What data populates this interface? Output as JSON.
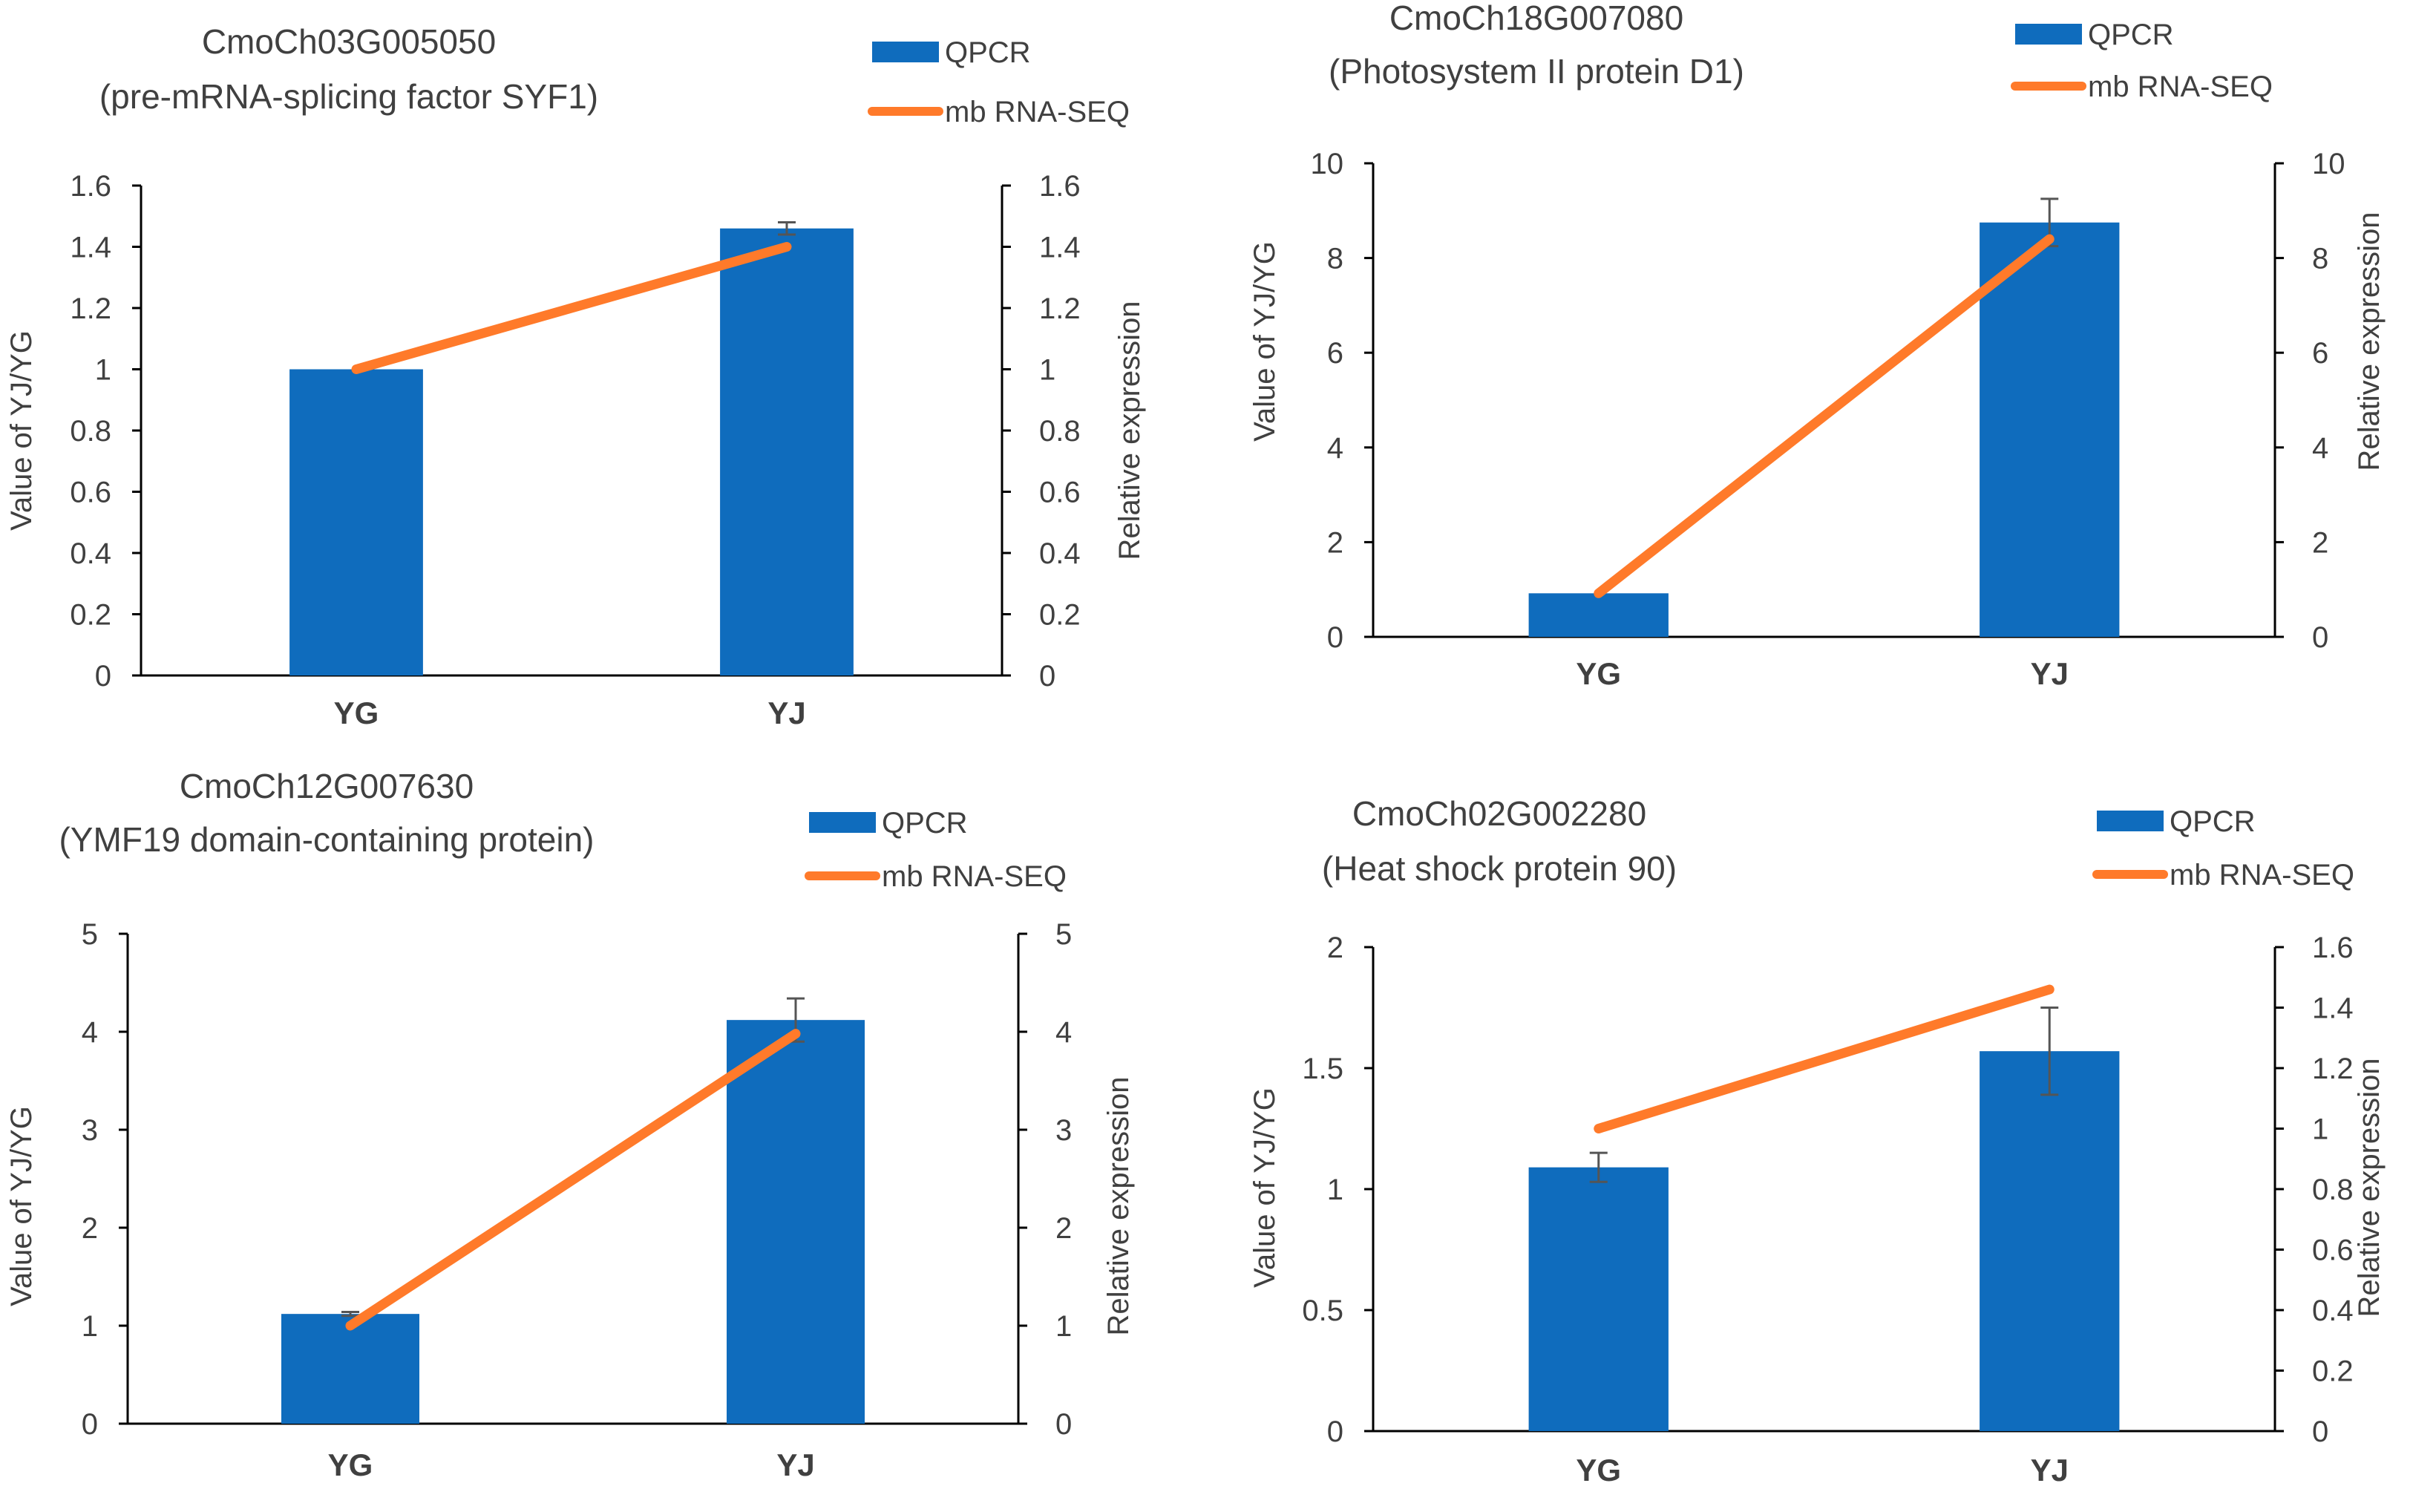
{
  "colors": {
    "bar": "#0f6cbd",
    "line": "#ff7a2a",
    "axis": "#000000",
    "text": "#404040",
    "error": "#555555"
  },
  "chart_data": [
    {
      "type": "bar",
      "title_line1": "CmoCh03G005050",
      "title_line2": "(pre-mRNA-splicing factor SYF1)",
      "categories": [
        "YG",
        "YJ"
      ],
      "series": [
        {
          "name": "QPCR",
          "type": "bar",
          "axis": "left",
          "values": [
            1.0,
            1.46
          ],
          "errors": [
            0.0,
            0.02
          ]
        },
        {
          "name": "mb RNA-SEQ",
          "type": "line",
          "axis": "right",
          "values": [
            1.0,
            1.4
          ]
        }
      ],
      "ylabel_left": "Value of YJ/YG",
      "ylabel_right": "Relative expression",
      "ylim_left": [
        0,
        1.6
      ],
      "ylim_right": [
        0,
        1.6
      ],
      "yticks_left": [
        "0",
        "0.2",
        "0.4",
        "0.6",
        "0.8",
        "1",
        "1.2",
        "1.4",
        "1.6"
      ],
      "yticks_right": [
        "0",
        "0.2",
        "0.4",
        "0.6",
        "0.8",
        "1",
        "1.2",
        "1.4",
        "1.6"
      ]
    },
    {
      "type": "bar",
      "title_line1": "CmoCh18G007080",
      "title_line2": "(Photosystem II protein D1)",
      "categories": [
        "YG",
        "YJ"
      ],
      "series": [
        {
          "name": "QPCR",
          "type": "bar",
          "axis": "left",
          "values": [
            0.92,
            8.75
          ],
          "errors": [
            0.0,
            0.5
          ]
        },
        {
          "name": "mb RNA-SEQ",
          "type": "line",
          "axis": "right",
          "values": [
            0.92,
            8.4
          ]
        }
      ],
      "ylabel_left": "Value of YJ/YG",
      "ylabel_right": "Relative expression",
      "ylim_left": [
        0,
        10
      ],
      "ylim_right": [
        0,
        10
      ],
      "yticks_left": [
        "0",
        "2",
        "4",
        "6",
        "8",
        "10"
      ],
      "yticks_right": [
        "0",
        "2",
        "4",
        "6",
        "8",
        "10"
      ]
    },
    {
      "type": "bar",
      "title_line1": "CmoCh12G007630",
      "title_line2": "(YMF19 domain-containing protein)",
      "categories": [
        "YG",
        "YJ"
      ],
      "series": [
        {
          "name": "QPCR",
          "type": "bar",
          "axis": "left",
          "values": [
            1.12,
            4.12
          ],
          "errors": [
            0.02,
            0.22
          ]
        },
        {
          "name": "mb RNA-SEQ",
          "type": "line",
          "axis": "right",
          "values": [
            1.0,
            3.98
          ]
        }
      ],
      "ylabel_left": "Value of YJ/YG",
      "ylabel_right": "Relative expression",
      "ylim_left": [
        0,
        5
      ],
      "ylim_right": [
        0,
        5
      ],
      "yticks_left": [
        "0",
        "1",
        "2",
        "3",
        "4",
        "5"
      ],
      "yticks_right": [
        "0",
        "1",
        "2",
        "3",
        "4",
        "5"
      ]
    },
    {
      "type": "bar",
      "title_line1": "CmoCh02G002280",
      "title_line2": "(Heat shock protein 90)",
      "categories": [
        "YG",
        "YJ"
      ],
      "series": [
        {
          "name": "QPCR",
          "type": "bar",
          "axis": "left",
          "values": [
            1.09,
            1.57
          ],
          "errors": [
            0.06,
            0.18
          ]
        },
        {
          "name": "mb RNA-SEQ",
          "type": "line",
          "axis": "right",
          "values": [
            1.0,
            1.46
          ]
        }
      ],
      "ylabel_left": "Value of YJ/YG",
      "ylabel_right": "Relative expression",
      "ylim_left": [
        0,
        2
      ],
      "ylim_right": [
        0,
        1.6
      ],
      "yticks_left": [
        "0",
        "0.5",
        "1",
        "1.5",
        "2"
      ],
      "yticks_right": [
        "0",
        "0.2",
        "0.4",
        "0.6",
        "0.8",
        "1",
        "1.2",
        "1.4",
        "1.6"
      ]
    }
  ]
}
